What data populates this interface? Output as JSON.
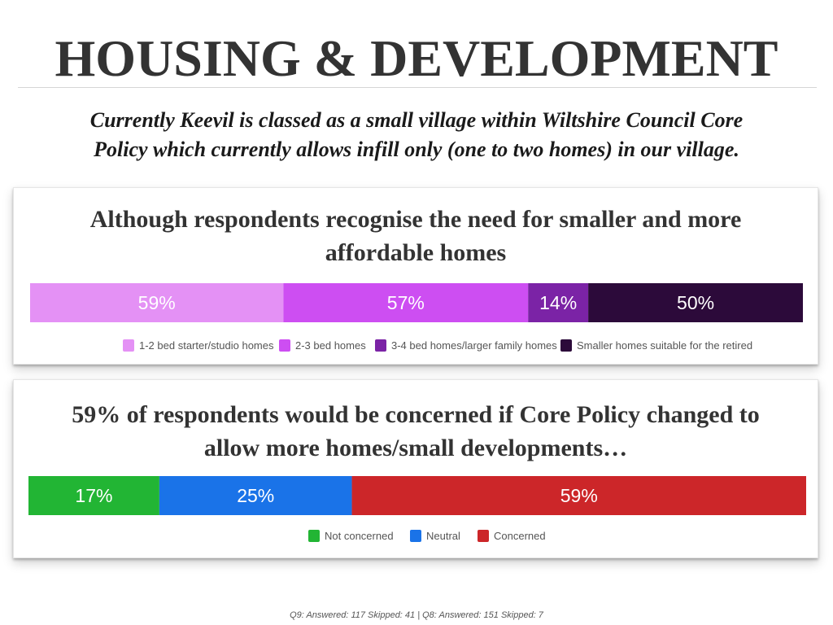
{
  "page": {
    "title": "HOUSING & DEVELOPMENT",
    "subtitle_line1": "Currently Keevil is classed as a small village within Wiltshire Council Core",
    "subtitle_line2": "Policy which currently allows infill only (one to two homes) in our village.",
    "footnote": "Q9: Answered: 117  Skipped: 41 | Q8: Answered: 151  Skipped: 7"
  },
  "chart_data": [
    {
      "type": "bar",
      "orientation": "horizontal-stacked",
      "title_line1": "Although respondents recognise the need for smaller and more",
      "title_line2": "affordable homes",
      "legend_position": "bottom",
      "series": [
        {
          "name": "1-2 bed starter/studio homes",
          "value": 59,
          "label": "59%",
          "color": "#e491f5"
        },
        {
          "name": "2-3 bed homes",
          "value": 57,
          "label": "57%",
          "color": "#cd4ef2"
        },
        {
          "name": "3-4 bed homes/larger family homes",
          "value": 14,
          "label": "14%",
          "color": "#7b23a6"
        },
        {
          "name": "Smaller homes suitable for the retired",
          "value": 50,
          "label": "50%",
          "color": "#2c0a3a"
        }
      ]
    },
    {
      "type": "bar",
      "orientation": "horizontal-stacked",
      "title_line1": "59% of respondents would be concerned if Core Policy changed to",
      "title_line2": "allow more homes/small developments…",
      "legend_position": "bottom",
      "series": [
        {
          "name": "Not concerned",
          "value": 17,
          "label": "17%",
          "color": "#22b534"
        },
        {
          "name": "Neutral",
          "value": 25,
          "label": "25%",
          "color": "#1a73e8"
        },
        {
          "name": "Concerned",
          "value": 59,
          "label": "59%",
          "color": "#cc2629"
        }
      ]
    }
  ]
}
